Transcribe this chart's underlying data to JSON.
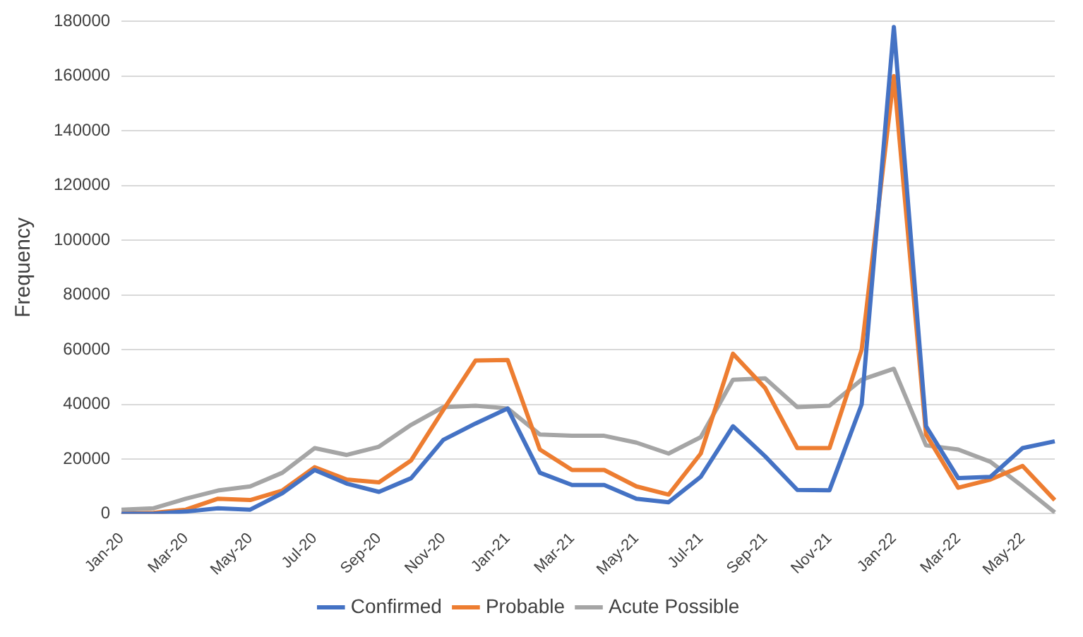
{
  "chart_data": {
    "type": "line",
    "ylabel": "Frequency",
    "categories": [
      "Jan-20",
      null,
      "Mar-20",
      null,
      "May-20",
      null,
      "Jul-20",
      null,
      "Sep-20",
      null,
      "Nov-20",
      null,
      "Jan-21",
      null,
      "Mar-21",
      null,
      "May-21",
      null,
      "Jul-21",
      null,
      "Sep-21",
      null,
      "Nov-21",
      null,
      "Jan-22",
      null,
      "Mar-22",
      null,
      "May-22",
      null
    ],
    "series": [
      {
        "name": "Confirmed",
        "color": "#4472c4",
        "values": [
          0,
          0,
          800,
          2000,
          1500,
          7500,
          16000,
          11000,
          8000,
          13000,
          27000,
          33000,
          38500,
          15000,
          10500,
          10500,
          5500,
          4200,
          13500,
          32000,
          21000,
          8700,
          8600,
          40000,
          178000,
          32000,
          13000,
          13500,
          24000,
          26500
        ]
      },
      {
        "name": "Probable",
        "color": "#ed7d31",
        "values": [
          0,
          300,
          1500,
          5500,
          5000,
          8500,
          17000,
          12500,
          11500,
          19500,
          38000,
          56000,
          56200,
          23500,
          16000,
          16000,
          10000,
          7000,
          22000,
          58500,
          46000,
          24000,
          24000,
          60000,
          160000,
          29000,
          9500,
          12500,
          17500,
          5000
        ]
      },
      {
        "name": "Acute Possible",
        "color": "#a5a5a5",
        "values": [
          1500,
          2000,
          5500,
          8500,
          10000,
          15000,
          24000,
          21500,
          24500,
          32500,
          39000,
          39500,
          38500,
          29000,
          28500,
          28500,
          26000,
          22000,
          28000,
          49000,
          49500,
          39000,
          39500,
          49000,
          53000,
          25000,
          23500,
          19000,
          10000,
          500
        ]
      }
    ],
    "ylim": [
      0,
      180000
    ],
    "yticks": [
      0,
      20000,
      40000,
      60000,
      80000,
      100000,
      120000,
      140000,
      160000,
      180000
    ],
    "grid": "y",
    "legend": "bottom",
    "marker": "none",
    "line_style": "solid"
  }
}
